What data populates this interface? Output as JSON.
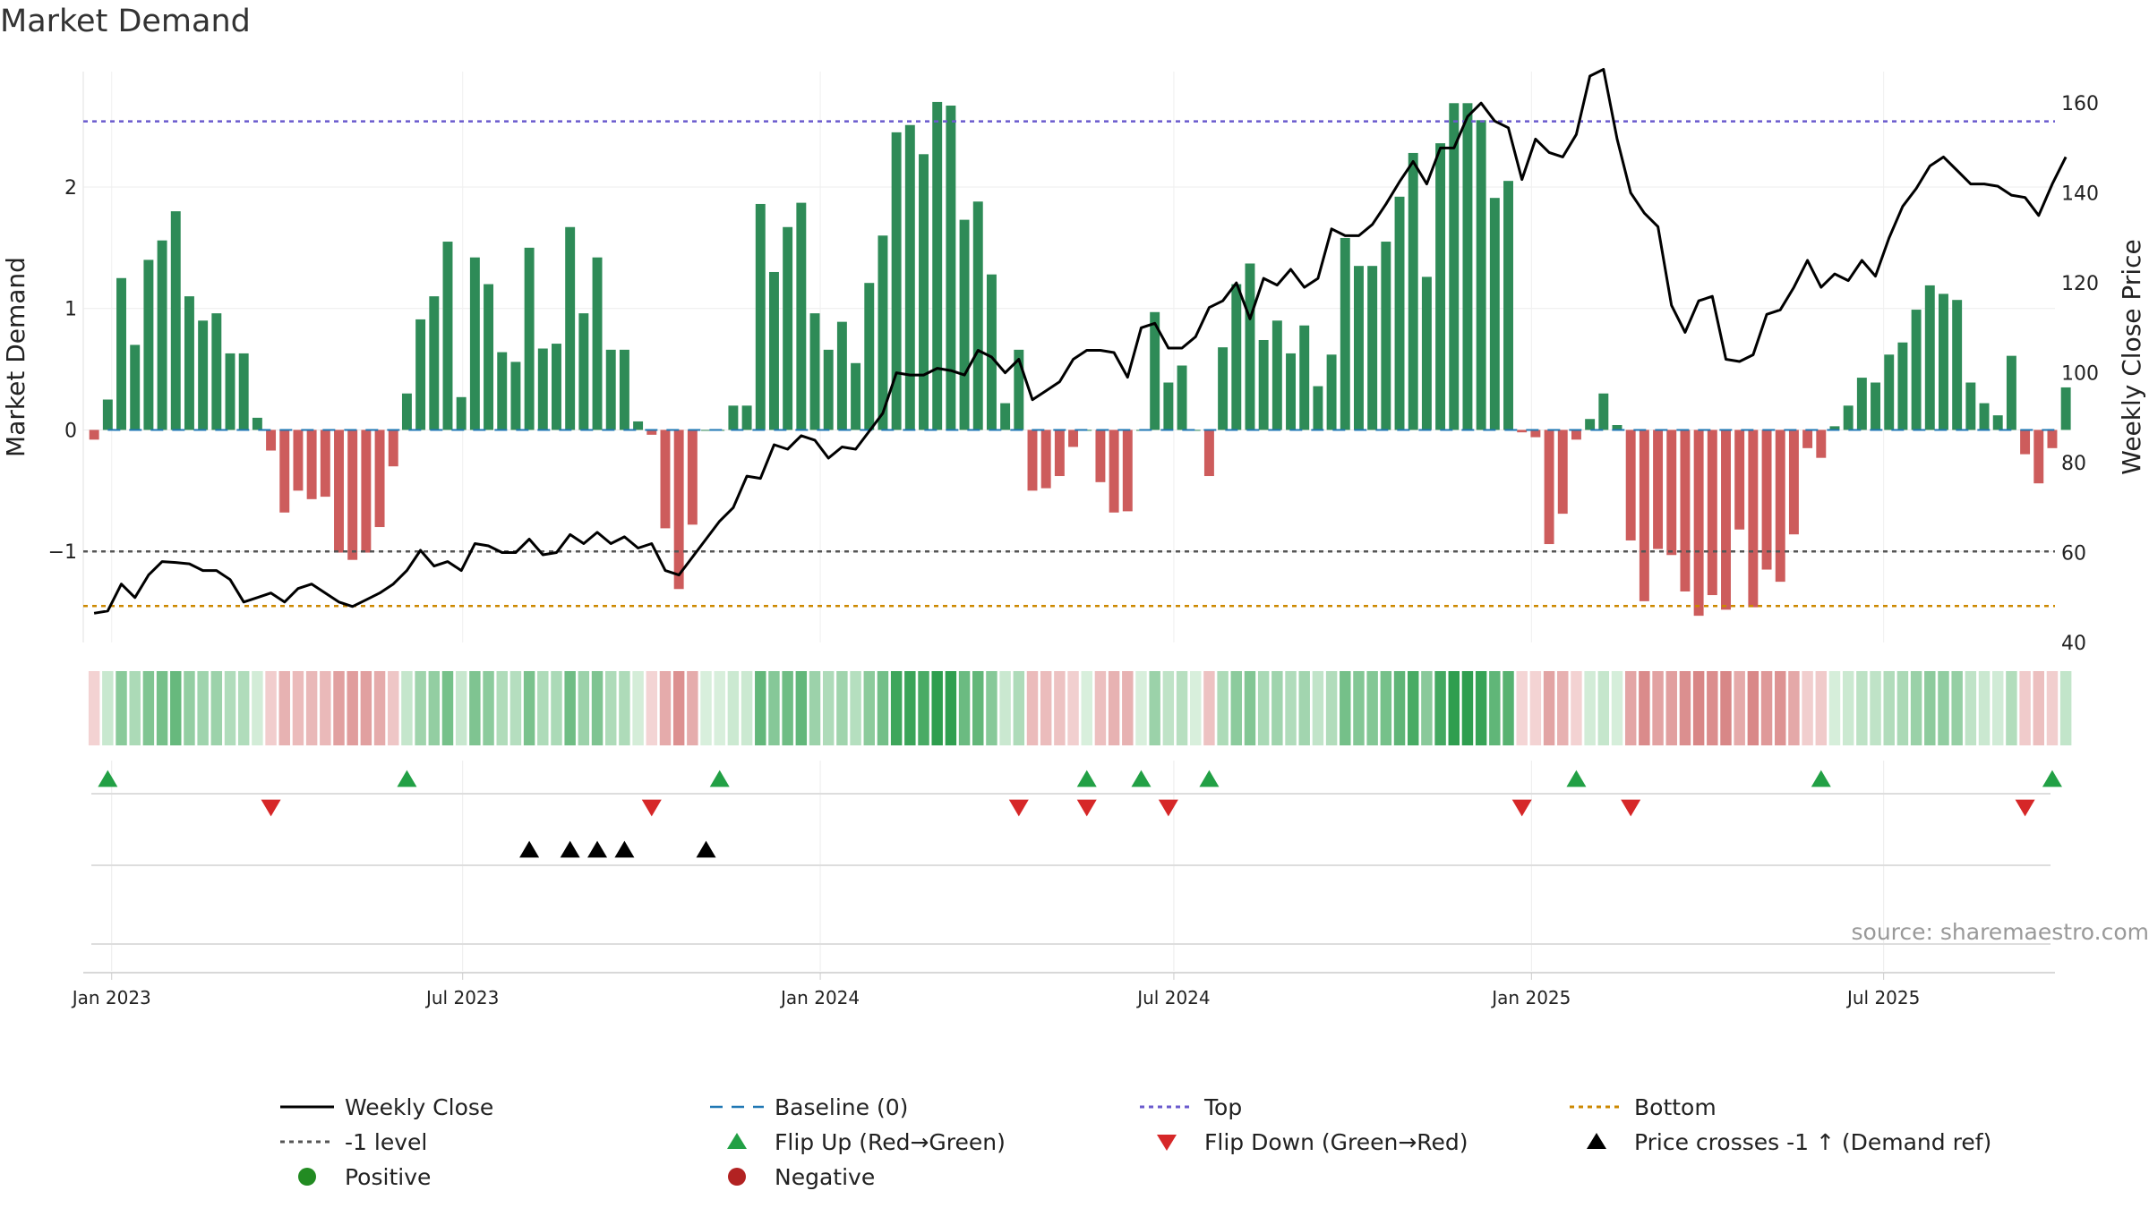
{
  "colors": {
    "positive": "#2e8b57",
    "negative": "#cd5c5c",
    "close": "#000000",
    "baseline": "#1f77b4",
    "top": "#6a5acd",
    "bottom": "#cc8800",
    "level": "#555555",
    "flip_up": "#22a045",
    "flip_down": "#d62728",
    "cross": "#000000",
    "positive_dot": "#228b22",
    "negative_dot": "#b22222",
    "source": "#999999"
  },
  "chart_data": {
    "type": "bar",
    "title": "Market Demand",
    "ylabel_left": "Market Demand",
    "ylabel_right": "Weekly Close Price",
    "ylim_left": [
      -1.75,
      2.95
    ],
    "ylim_right": [
      40,
      167
    ],
    "yticks_left": [
      {
        "value": 2,
        "label": "2"
      },
      {
        "value": 1,
        "label": "1"
      },
      {
        "value": 0,
        "label": "0"
      },
      {
        "value": -1,
        "label": "−1"
      }
    ],
    "yticks_right": [
      {
        "value": 160,
        "label": "160"
      },
      {
        "value": 140,
        "label": "140"
      },
      {
        "value": 120,
        "label": "120"
      },
      {
        "value": 100,
        "label": "100"
      },
      {
        "value": 80,
        "label": "80"
      },
      {
        "value": 60,
        "label": "60"
      },
      {
        "value": 40,
        "label": "40"
      }
    ],
    "x_start_week_offset": -1,
    "x_range_weeks": [
      -1.8,
      143.2
    ],
    "x_ticks": [
      {
        "label": "Jan 2023",
        "week": 0.29
      },
      {
        "label": "Jul 2023",
        "week": 26.1
      },
      {
        "label": "Jan 2024",
        "week": 52.4
      },
      {
        "label": "Jul 2024",
        "week": 78.4
      },
      {
        "label": "Jan 2025",
        "week": 104.7
      },
      {
        "label": "Jul 2025",
        "week": 130.6
      }
    ],
    "reference_lines": {
      "top": 2.54,
      "level": -1,
      "bottom": -1.45,
      "baseline": 0
    },
    "demand": [
      -0.08,
      0.25,
      1.25,
      0.7,
      1.4,
      1.56,
      1.8,
      1.1,
      0.9,
      0.96,
      0.63,
      0.63,
      0.1,
      -0.17,
      -0.68,
      -0.5,
      -0.57,
      -0.55,
      -1.01,
      -1.07,
      -1.01,
      -0.8,
      -0.3,
      0.3,
      0.91,
      1.1,
      1.55,
      0.27,
      1.42,
      1.2,
      0.64,
      0.56,
      1.5,
      0.67,
      0.71,
      1.67,
      0.96,
      1.42,
      0.66,
      0.66,
      0.07,
      -0.04,
      -0.81,
      -1.31,
      -0.78,
      0.0,
      0.0,
      0.2,
      0.2,
      1.86,
      1.3,
      1.67,
      1.87,
      0.96,
      0.66,
      0.89,
      0.55,
      1.21,
      1.6,
      2.45,
      2.51,
      2.27,
      2.7,
      2.67,
      1.73,
      1.88,
      1.28,
      0.22,
      0.66,
      -0.5,
      -0.48,
      -0.38,
      -0.14,
      0.0,
      -0.43,
      -0.68,
      -0.67,
      0.0,
      0.97,
      0.39,
      0.53,
      0.0,
      -0.38,
      0.68,
      1.2,
      1.37,
      0.74,
      0.9,
      0.63,
      0.86,
      0.36,
      0.62,
      1.58,
      1.35,
      1.35,
      1.55,
      1.92,
      2.28,
      1.26,
      2.36,
      2.69,
      2.69,
      2.55,
      1.91,
      2.05,
      -0.02,
      -0.06,
      -0.94,
      -0.69,
      -0.08,
      0.09,
      0.3,
      0.04,
      -0.91,
      -1.41,
      -0.98,
      -1.03,
      -1.33,
      -1.53,
      -1.36,
      -1.48,
      -0.82,
      -1.46,
      -1.15,
      -1.25,
      -0.86,
      -0.15,
      -0.23,
      0.03,
      0.2,
      0.43,
      0.39,
      0.62,
      0.72,
      0.99,
      1.19,
      1.12,
      1.07,
      0.39,
      0.22,
      0.12,
      0.61,
      -0.2,
      -0.44,
      -0.15,
      0.35
    ],
    "weekly_close": [
      46.5,
      47,
      53,
      50,
      55,
      58,
      57.8,
      57.5,
      56,
      56,
      54,
      49,
      50,
      51,
      49,
      52,
      53,
      51,
      49,
      48,
      49.5,
      51,
      53,
      56,
      60.5,
      57,
      58,
      56,
      62,
      61.5,
      60,
      60,
      63,
      59.5,
      60,
      64,
      62,
      64.5,
      62,
      63.5,
      61,
      62,
      56,
      55,
      59,
      63,
      67,
      70,
      77,
      76.5,
      84,
      83,
      86,
      85,
      81,
      83.5,
      83,
      87,
      91,
      100,
      99.5,
      99.5,
      101,
      100.5,
      99.5,
      105,
      103.5,
      100,
      103,
      94,
      96,
      98,
      103,
      105,
      105,
      104.5,
      99,
      110,
      111,
      105.5,
      105.5,
      108,
      114.5,
      116,
      120,
      112,
      121,
      119.5,
      123,
      119,
      121,
      132,
      130.5,
      130.5,
      133,
      137.5,
      142.5,
      147,
      142,
      150,
      150,
      157,
      160,
      156,
      154.5,
      143,
      152,
      149,
      148,
      153,
      166,
      167.5,
      152,
      140,
      135.5,
      132.5,
      115,
      109,
      116,
      117,
      103,
      102.5,
      104,
      113,
      114,
      119,
      125,
      119,
      122,
      120.5,
      125,
      121.5,
      130,
      137,
      141,
      146,
      148,
      145,
      142,
      142,
      141.5,
      139.5,
      139,
      135,
      142,
      148
    ],
    "flip_up_weeks": [
      0,
      22,
      45,
      72,
      76,
      81,
      108,
      126,
      143
    ],
    "flip_down_weeks": [
      12,
      40,
      67,
      72,
      78,
      104,
      112,
      141
    ],
    "price_cross_weeks": [
      31,
      34,
      36,
      38,
      44
    ],
    "source": "source: sharemaestro.com",
    "legend": [
      {
        "label": "Weekly Close",
        "style": "line",
        "color": "#000000"
      },
      {
        "label": "Baseline (0)",
        "style": "dash",
        "color": "#1f77b4"
      },
      {
        "label": "Top",
        "style": "dot",
        "color": "#6a5acd"
      },
      {
        "label": "Bottom",
        "style": "dot",
        "color": "#cc8800"
      },
      {
        "label": "-1 level",
        "style": "dot",
        "color": "#555555"
      },
      {
        "label": "Flip Up (Red→Green)",
        "style": "tri-up",
        "color": "#22a045"
      },
      {
        "label": "Flip Down (Green→Red)",
        "style": "tri-down",
        "color": "#d62728"
      },
      {
        "label": "Price crosses -1 ↑ (Demand ref)",
        "style": "tri-up",
        "color": "#000000"
      },
      {
        "label": "Positive",
        "style": "circle",
        "color": "#228b22"
      },
      {
        "label": "Negative",
        "style": "circle",
        "color": "#b22222"
      }
    ]
  }
}
